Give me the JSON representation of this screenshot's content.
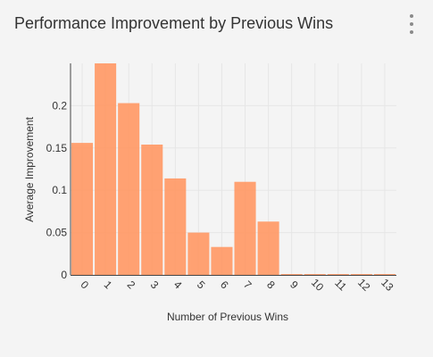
{
  "card": {
    "title": "Performance Improvement by Previous Wins",
    "menu_icon": "more-vertical-icon"
  },
  "chart_data": {
    "type": "bar",
    "xlabel": "Number of Previous Wins",
    "ylabel": "Average Improvement",
    "categories": [
      "0",
      "1",
      "2",
      "3",
      "4",
      "5",
      "6",
      "7",
      "8",
      "9",
      "10",
      "11",
      "12",
      "13"
    ],
    "values": [
      0.156,
      0.25,
      0.203,
      0.154,
      0.114,
      0.05,
      0.033,
      0.11,
      0.063,
      0.001,
      0.001,
      0.001,
      0.001,
      0.001
    ],
    "y_ticks": [
      0,
      0.05,
      0.1,
      0.15,
      0.2
    ],
    "y_tick_labels": [
      "0",
      "0.05",
      "0.1",
      "0.15",
      "0.2"
    ],
    "ylim": [
      0,
      0.25
    ],
    "grid": true,
    "bar_color": "#ff9966",
    "legend": "none"
  }
}
